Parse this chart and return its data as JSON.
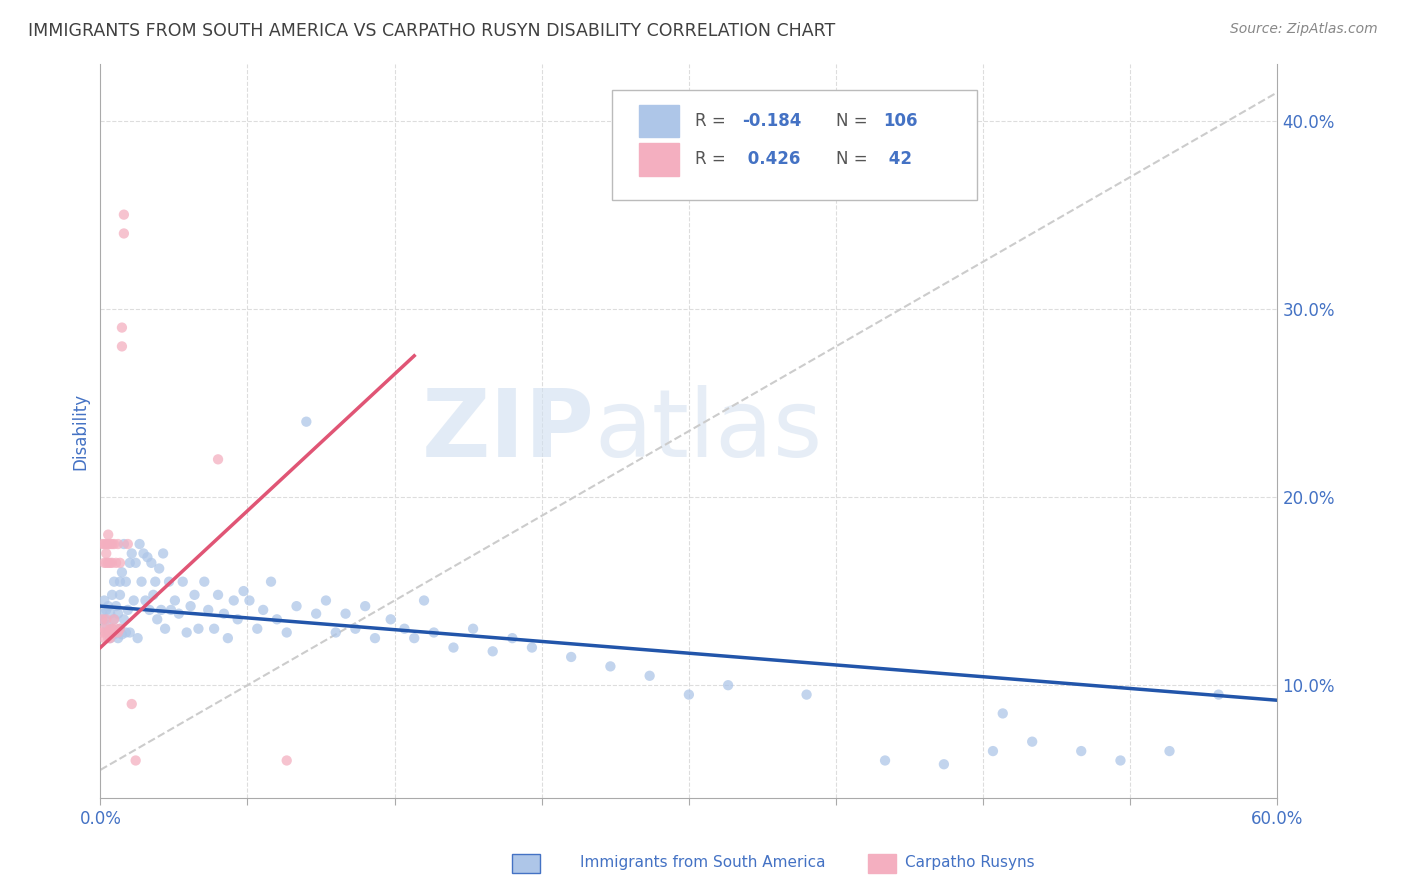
{
  "title": "IMMIGRANTS FROM SOUTH AMERICA VS CARPATHO RUSYN DISABILITY CORRELATION CHART",
  "source": "Source: ZipAtlas.com",
  "ylabel": "Disability",
  "xlim": [
    0.0,
    0.6
  ],
  "ylim": [
    0.04,
    0.43
  ],
  "yticks": [
    0.1,
    0.2,
    0.3,
    0.4
  ],
  "ytick_labels": [
    "10.0%",
    "20.0%",
    "30.0%",
    "40.0%"
  ],
  "xticks": [
    0.0,
    0.075,
    0.15,
    0.225,
    0.3,
    0.375,
    0.45,
    0.525,
    0.6
  ],
  "blue_color": "#aec6e8",
  "pink_color": "#f4afc0",
  "blue_line_color": "#2255aa",
  "pink_line_color": "#e05575",
  "scatter_alpha": 0.75,
  "marker_size": 55,
  "blue_scatter_x": [
    0.001,
    0.002,
    0.002,
    0.003,
    0.003,
    0.004,
    0.004,
    0.005,
    0.005,
    0.006,
    0.006,
    0.007,
    0.007,
    0.007,
    0.008,
    0.008,
    0.009,
    0.009,
    0.01,
    0.01,
    0.01,
    0.011,
    0.011,
    0.012,
    0.012,
    0.013,
    0.013,
    0.014,
    0.015,
    0.015,
    0.016,
    0.017,
    0.018,
    0.019,
    0.02,
    0.021,
    0.022,
    0.023,
    0.024,
    0.025,
    0.026,
    0.027,
    0.028,
    0.029,
    0.03,
    0.031,
    0.032,
    0.033,
    0.035,
    0.036,
    0.038,
    0.04,
    0.042,
    0.044,
    0.046,
    0.048,
    0.05,
    0.053,
    0.055,
    0.058,
    0.06,
    0.063,
    0.065,
    0.068,
    0.07,
    0.073,
    0.076,
    0.08,
    0.083,
    0.087,
    0.09,
    0.095,
    0.1,
    0.105,
    0.11,
    0.115,
    0.12,
    0.125,
    0.13,
    0.135,
    0.14,
    0.148,
    0.155,
    0.16,
    0.165,
    0.17,
    0.18,
    0.19,
    0.2,
    0.21,
    0.22,
    0.24,
    0.26,
    0.28,
    0.3,
    0.32,
    0.36,
    0.4,
    0.43,
    0.455,
    0.46,
    0.475,
    0.5,
    0.52,
    0.545,
    0.57
  ],
  "blue_scatter_y": [
    0.138,
    0.135,
    0.145,
    0.132,
    0.14,
    0.128,
    0.142,
    0.125,
    0.138,
    0.13,
    0.148,
    0.127,
    0.135,
    0.155,
    0.128,
    0.142,
    0.125,
    0.138,
    0.13,
    0.148,
    0.155,
    0.127,
    0.16,
    0.135,
    0.175,
    0.128,
    0.155,
    0.14,
    0.165,
    0.128,
    0.17,
    0.145,
    0.165,
    0.125,
    0.175,
    0.155,
    0.17,
    0.145,
    0.168,
    0.14,
    0.165,
    0.148,
    0.155,
    0.135,
    0.162,
    0.14,
    0.17,
    0.13,
    0.155,
    0.14,
    0.145,
    0.138,
    0.155,
    0.128,
    0.142,
    0.148,
    0.13,
    0.155,
    0.14,
    0.13,
    0.148,
    0.138,
    0.125,
    0.145,
    0.135,
    0.15,
    0.145,
    0.13,
    0.14,
    0.155,
    0.135,
    0.128,
    0.142,
    0.24,
    0.138,
    0.145,
    0.128,
    0.138,
    0.13,
    0.142,
    0.125,
    0.135,
    0.13,
    0.125,
    0.145,
    0.128,
    0.12,
    0.13,
    0.118,
    0.125,
    0.12,
    0.115,
    0.11,
    0.105,
    0.095,
    0.1,
    0.095,
    0.06,
    0.058,
    0.065,
    0.085,
    0.07,
    0.065,
    0.06,
    0.065,
    0.095
  ],
  "pink_scatter_x": [
    0.001,
    0.001,
    0.001,
    0.002,
    0.002,
    0.002,
    0.002,
    0.003,
    0.003,
    0.003,
    0.003,
    0.003,
    0.004,
    0.004,
    0.004,
    0.004,
    0.005,
    0.005,
    0.005,
    0.005,
    0.005,
    0.006,
    0.006,
    0.006,
    0.007,
    0.007,
    0.007,
    0.008,
    0.008,
    0.009,
    0.009,
    0.01,
    0.01,
    0.011,
    0.011,
    0.012,
    0.012,
    0.014,
    0.016,
    0.018,
    0.06,
    0.095
  ],
  "pink_scatter_y": [
    0.128,
    0.135,
    0.175,
    0.13,
    0.175,
    0.165,
    0.125,
    0.17,
    0.175,
    0.165,
    0.128,
    0.135,
    0.125,
    0.18,
    0.175,
    0.165,
    0.128,
    0.175,
    0.13,
    0.165,
    0.125,
    0.175,
    0.13,
    0.165,
    0.128,
    0.135,
    0.175,
    0.13,
    0.165,
    0.128,
    0.175,
    0.165,
    0.13,
    0.28,
    0.29,
    0.35,
    0.34,
    0.175,
    0.09,
    0.06,
    0.22,
    0.06
  ],
  "blue_trend_x": [
    0.0,
    0.6
  ],
  "blue_trend_y": [
    0.142,
    0.092
  ],
  "pink_trend_x": [
    0.0,
    0.16
  ],
  "pink_trend_y": [
    0.12,
    0.275
  ],
  "diag_trend_x": [
    0.0,
    0.6
  ],
  "diag_trend_y": [
    0.055,
    0.415
  ],
  "watermark_zip": "ZIP",
  "watermark_atlas": "atlas",
  "background_color": "#ffffff",
  "grid_color": "#dddddd",
  "title_color": "#404040",
  "axis_label_color": "#4472c4",
  "legend_text_color": "#4472c4"
}
